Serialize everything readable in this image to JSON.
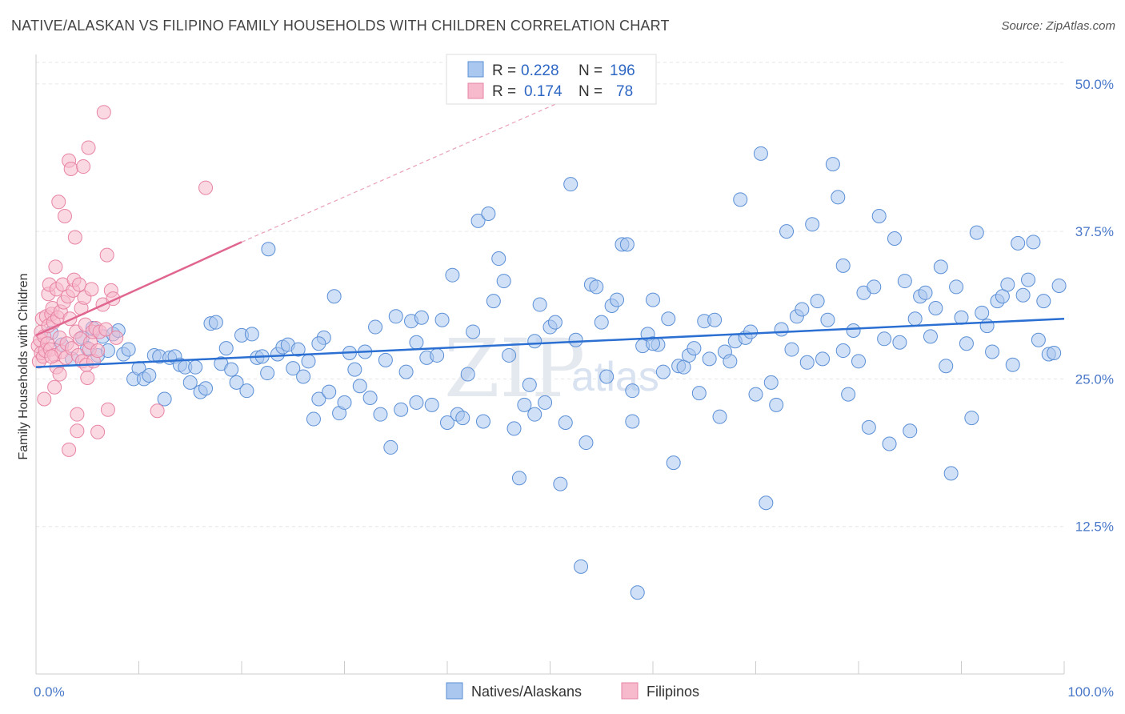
{
  "header": {
    "title": "NATIVE/ALASKAN VS FILIPINO FAMILY HOUSEHOLDS WITH CHILDREN CORRELATION CHART",
    "source": "Source: ZipAtlas.com"
  },
  "watermark": {
    "zip": "ZIP",
    "atlas": "atlas"
  },
  "legend": {
    "r_label": "R =",
    "n_label": "N =",
    "items": [
      {
        "r": "0.228",
        "n": "196",
        "color": "#a9c7ef",
        "stroke": "#5b8fd6"
      },
      {
        "r": "0.174",
        "n": "78",
        "color": "#f7b9cc",
        "stroke": "#e784a4"
      }
    ]
  },
  "bottom_legend": [
    "Natives/Alaskans",
    "Filipinos"
  ],
  "chart_data": {
    "type": "scatter",
    "title": "NATIVE/ALASKAN VS FILIPINO FAMILY HOUSEHOLDS WITH CHILDREN CORRELATION CHART",
    "ylabel": "Family Households with Children",
    "xlabel": "",
    "xlim": [
      0,
      100
    ],
    "ylim": [
      0,
      52.5
    ],
    "x_tick_labels": [
      "0.0%",
      "100.0%"
    ],
    "y_ticks": [
      12.5,
      25.0,
      37.5,
      50.0
    ],
    "y_tick_labels": [
      "12.5%",
      "25.0%",
      "37.5%",
      "50.0%"
    ],
    "grid": true,
    "legend_position": "top-center",
    "series": [
      {
        "name": "Natives/Alaskans",
        "color": "#a9c7ef",
        "stroke": "#5b8fd6",
        "trend": {
          "x": [
            0,
            100
          ],
          "y": [
            26.0,
            30.1
          ],
          "color": "#2a6fd1"
        },
        "points": [
          [
            1.5,
            28.9
          ],
          [
            2.5,
            27.9
          ],
          [
            3.5,
            26.7
          ],
          [
            4.5,
            28.5
          ],
          [
            5.0,
            27.6
          ],
          [
            5.5,
            29.3
          ],
          [
            6.0,
            27.0
          ],
          [
            6.5,
            28.6
          ],
          [
            7.0,
            27.4
          ],
          [
            7.5,
            28.8
          ],
          [
            8.0,
            29.1
          ],
          [
            8.5,
            27.1
          ],
          [
            9.0,
            27.5
          ],
          [
            9.5,
            25.0
          ],
          [
            10.0,
            25.9
          ],
          [
            10.5,
            25.0
          ],
          [
            11.0,
            25.3
          ],
          [
            11.5,
            27.0
          ],
          [
            12.0,
            26.9
          ],
          [
            12.5,
            23.3
          ],
          [
            13.0,
            26.8
          ],
          [
            13.5,
            26.9
          ],
          [
            14.0,
            26.2
          ],
          [
            14.5,
            26.0
          ],
          [
            15.0,
            24.7
          ],
          [
            15.5,
            26.0
          ],
          [
            16.0,
            23.9
          ],
          [
            16.5,
            24.2
          ],
          [
            17.0,
            29.7
          ],
          [
            17.5,
            29.8
          ],
          [
            18.0,
            26.3
          ],
          [
            18.5,
            27.6
          ],
          [
            19.0,
            25.8
          ],
          [
            19.5,
            24.7
          ],
          [
            20.0,
            28.7
          ],
          [
            20.5,
            24.0
          ],
          [
            21.0,
            28.8
          ],
          [
            21.5,
            26.8
          ],
          [
            22.0,
            26.9
          ],
          [
            22.5,
            25.5
          ],
          [
            22.6,
            36.0
          ],
          [
            23.5,
            27.1
          ],
          [
            24.0,
            27.7
          ],
          [
            24.5,
            27.9
          ],
          [
            25.0,
            25.9
          ],
          [
            25.5,
            27.5
          ],
          [
            26.0,
            25.2
          ],
          [
            26.5,
            26.5
          ],
          [
            27.0,
            21.6
          ],
          [
            27.5,
            23.3
          ],
          [
            28.0,
            28.5
          ],
          [
            28.5,
            23.9
          ],
          [
            29.0,
            32.0
          ],
          [
            29.5,
            22.1
          ],
          [
            30.0,
            23.0
          ],
          [
            30.5,
            27.2
          ],
          [
            31.0,
            25.8
          ],
          [
            31.5,
            24.4
          ],
          [
            32.0,
            27.3
          ],
          [
            32.5,
            23.4
          ],
          [
            33.0,
            29.4
          ],
          [
            33.5,
            22.0
          ],
          [
            34.0,
            26.6
          ],
          [
            34.5,
            19.2
          ],
          [
            35.0,
            30.3
          ],
          [
            35.5,
            22.4
          ],
          [
            36.0,
            25.6
          ],
          [
            36.5,
            29.9
          ],
          [
            37.0,
            23.0
          ],
          [
            37.5,
            30.2
          ],
          [
            38.0,
            26.8
          ],
          [
            38.5,
            22.8
          ],
          [
            39.0,
            27.0
          ],
          [
            39.5,
            30.0
          ],
          [
            40.0,
            21.3
          ],
          [
            40.5,
            33.8
          ],
          [
            41.0,
            22.0
          ],
          [
            41.5,
            21.7
          ],
          [
            42.0,
            25.4
          ],
          [
            42.5,
            29.0
          ],
          [
            43.0,
            38.4
          ],
          [
            43.5,
            21.4
          ],
          [
            44.0,
            39.0
          ],
          [
            44.5,
            31.6
          ],
          [
            45.0,
            35.2
          ],
          [
            45.5,
            33.3
          ],
          [
            46.0,
            27.0
          ],
          [
            46.5,
            20.8
          ],
          [
            47.0,
            16.6
          ],
          [
            47.5,
            22.8
          ],
          [
            48.0,
            24.5
          ],
          [
            48.5,
            28.2
          ],
          [
            49.0,
            31.3
          ],
          [
            49.5,
            23.0
          ],
          [
            50.0,
            29.4
          ],
          [
            50.5,
            29.8
          ],
          [
            51.0,
            16.1
          ],
          [
            51.5,
            21.3
          ],
          [
            52.0,
            41.5
          ],
          [
            52.5,
            28.3
          ],
          [
            53.0,
            9.1
          ],
          [
            53.5,
            19.6
          ],
          [
            54.0,
            33.0
          ],
          [
            54.5,
            32.8
          ],
          [
            55.0,
            29.8
          ],
          [
            55.5,
            25.2
          ],
          [
            56.0,
            31.2
          ],
          [
            56.5,
            31.7
          ],
          [
            57.0,
            36.4
          ],
          [
            57.5,
            36.4
          ],
          [
            58.0,
            21.4
          ],
          [
            58.5,
            6.9
          ],
          [
            59.0,
            27.8
          ],
          [
            59.5,
            28.8
          ],
          [
            60.0,
            31.7
          ],
          [
            60.5,
            27.9
          ],
          [
            61.0,
            25.6
          ],
          [
            61.5,
            30.1
          ],
          [
            62.0,
            17.9
          ],
          [
            62.5,
            26.1
          ],
          [
            63.0,
            26.0
          ],
          [
            63.5,
            27.0
          ],
          [
            64.0,
            27.6
          ],
          [
            64.5,
            23.8
          ],
          [
            65.0,
            29.9
          ],
          [
            65.5,
            26.7
          ],
          [
            66.0,
            30.0
          ],
          [
            66.5,
            21.8
          ],
          [
            67.0,
            27.3
          ],
          [
            67.5,
            26.5
          ],
          [
            68.0,
            28.2
          ],
          [
            68.5,
            40.2
          ],
          [
            69.0,
            28.5
          ],
          [
            69.5,
            29.0
          ],
          [
            70.0,
            23.7
          ],
          [
            70.5,
            44.1
          ],
          [
            71.0,
            14.5
          ],
          [
            71.5,
            24.7
          ],
          [
            72.0,
            22.8
          ],
          [
            72.5,
            29.2
          ],
          [
            73.0,
            37.5
          ],
          [
            73.5,
            27.5
          ],
          [
            74.0,
            30.3
          ],
          [
            74.5,
            30.9
          ],
          [
            75.0,
            26.4
          ],
          [
            75.5,
            38.1
          ],
          [
            76.0,
            31.6
          ],
          [
            76.5,
            26.7
          ],
          [
            77.0,
            30.0
          ],
          [
            77.5,
            43.2
          ],
          [
            78.0,
            40.4
          ],
          [
            78.5,
            34.6
          ],
          [
            79.0,
            23.7
          ],
          [
            79.5,
            29.1
          ],
          [
            80.0,
            26.5
          ],
          [
            80.5,
            32.3
          ],
          [
            81.0,
            20.9
          ],
          [
            81.5,
            32.8
          ],
          [
            82.0,
            38.8
          ],
          [
            82.5,
            28.4
          ],
          [
            83.0,
            19.5
          ],
          [
            83.5,
            36.9
          ],
          [
            84.0,
            28.1
          ],
          [
            84.5,
            33.3
          ],
          [
            85.0,
            20.6
          ],
          [
            85.5,
            30.1
          ],
          [
            86.0,
            32.0
          ],
          [
            86.5,
            32.3
          ],
          [
            87.0,
            28.6
          ],
          [
            87.5,
            31.0
          ],
          [
            88.0,
            34.5
          ],
          [
            88.5,
            26.1
          ],
          [
            89.0,
            17.0
          ],
          [
            89.5,
            32.8
          ],
          [
            90.0,
            30.2
          ],
          [
            90.5,
            28.0
          ],
          [
            91.0,
            21.7
          ],
          [
            91.5,
            37.4
          ],
          [
            92.0,
            30.6
          ],
          [
            92.5,
            29.5
          ],
          [
            93.0,
            27.3
          ],
          [
            93.5,
            31.6
          ],
          [
            94.0,
            32.0
          ],
          [
            94.5,
            33.0
          ],
          [
            95.0,
            26.2
          ],
          [
            95.5,
            36.5
          ],
          [
            96.0,
            32.1
          ],
          [
            96.5,
            33.4
          ],
          [
            97.0,
            36.6
          ],
          [
            97.5,
            28.3
          ],
          [
            98.0,
            31.6
          ],
          [
            98.5,
            27.1
          ],
          [
            99.0,
            27.2
          ],
          [
            99.5,
            32.9
          ],
          [
            27.5,
            28.0
          ],
          [
            37.0,
            28.1
          ],
          [
            48.5,
            22.0
          ],
          [
            58.0,
            24.0
          ],
          [
            60.0,
            28.0
          ],
          [
            78.5,
            27.4
          ]
        ]
      },
      {
        "name": "Filipinos",
        "color": "#f7b9cc",
        "stroke": "#e784a4",
        "trend": {
          "x": [
            0,
            20
          ],
          "y": [
            28.7,
            36.6
          ],
          "extended_to": [
            55,
            50.0
          ],
          "color": "#e06690"
        },
        "points": [
          [
            0.2,
            27.8
          ],
          [
            0.3,
            26.5
          ],
          [
            0.4,
            28.3
          ],
          [
            0.5,
            29.0
          ],
          [
            0.5,
            27.2
          ],
          [
            0.6,
            30.1
          ],
          [
            0.7,
            26.9
          ],
          [
            0.8,
            28.6
          ],
          [
            0.8,
            23.3
          ],
          [
            0.9,
            27.4
          ],
          [
            1.0,
            30.3
          ],
          [
            1.1,
            28.0
          ],
          [
            1.2,
            29.5
          ],
          [
            1.2,
            32.2
          ],
          [
            1.3,
            33.0
          ],
          [
            1.4,
            27.5
          ],
          [
            1.5,
            30.5
          ],
          [
            1.6,
            31.0
          ],
          [
            1.7,
            29.8
          ],
          [
            1.8,
            27.0
          ],
          [
            1.8,
            24.3
          ],
          [
            1.9,
            34.5
          ],
          [
            2.0,
            26.0
          ],
          [
            2.0,
            32.6
          ],
          [
            2.1,
            30.2
          ],
          [
            2.2,
            40.0
          ],
          [
            2.3,
            28.5
          ],
          [
            2.3,
            25.4
          ],
          [
            2.4,
            30.7
          ],
          [
            2.5,
            27.3
          ],
          [
            2.6,
            33.0
          ],
          [
            2.7,
            31.5
          ],
          [
            2.8,
            38.8
          ],
          [
            2.9,
            26.8
          ],
          [
            3.0,
            28.0
          ],
          [
            3.1,
            32.0
          ],
          [
            3.2,
            43.5
          ],
          [
            3.2,
            19.0
          ],
          [
            3.3,
            30.1
          ],
          [
            3.4,
            42.8
          ],
          [
            3.5,
            27.6
          ],
          [
            3.6,
            32.5
          ],
          [
            3.7,
            33.4
          ],
          [
            3.8,
            37.0
          ],
          [
            3.9,
            29.0
          ],
          [
            4.0,
            22.0
          ],
          [
            4.0,
            20.6
          ],
          [
            4.1,
            27.0
          ],
          [
            4.2,
            33.0
          ],
          [
            4.3,
            28.4
          ],
          [
            4.4,
            31.0
          ],
          [
            4.5,
            26.5
          ],
          [
            4.6,
            43.0
          ],
          [
            4.7,
            31.9
          ],
          [
            4.8,
            29.6
          ],
          [
            4.9,
            26.2
          ],
          [
            5.0,
            25.1
          ],
          [
            5.1,
            44.6
          ],
          [
            5.2,
            27.5
          ],
          [
            5.3,
            28.1
          ],
          [
            5.4,
            32.6
          ],
          [
            5.5,
            29.0
          ],
          [
            5.6,
            26.5
          ],
          [
            5.8,
            29.3
          ],
          [
            6.0,
            27.4
          ],
          [
            6.0,
            20.5
          ],
          [
            6.2,
            29.0
          ],
          [
            6.5,
            31.3
          ],
          [
            6.6,
            47.6
          ],
          [
            6.8,
            29.2
          ],
          [
            6.9,
            35.5
          ],
          [
            7.0,
            22.4
          ],
          [
            7.3,
            32.5
          ],
          [
            7.5,
            31.8
          ],
          [
            7.8,
            28.5
          ],
          [
            11.8,
            22.3
          ],
          [
            16.5,
            41.2
          ],
          [
            1.5,
            26.9
          ]
        ]
      }
    ]
  }
}
